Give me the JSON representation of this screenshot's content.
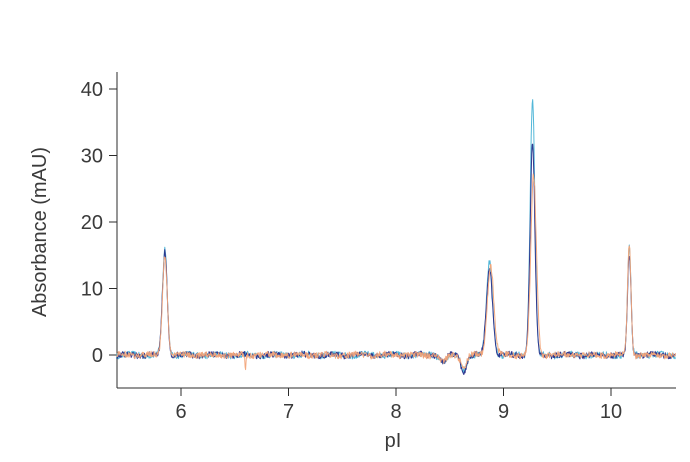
{
  "chart_data": {
    "type": "line",
    "title": "",
    "xlabel": "pI",
    "ylabel": "Absorbance (mAU)",
    "xlim": [
      5.4,
      10.6
    ],
    "ylim": [
      -5,
      43
    ],
    "x_ticks": [
      6,
      7,
      8,
      9,
      10
    ],
    "y_ticks": [
      0,
      10,
      20,
      30,
      40
    ],
    "grid": false,
    "legend": "none",
    "peaks_note_values": [
      {
        "x": 5.85,
        "y": 15.8
      },
      {
        "x": 6.6,
        "y": -2.0
      },
      {
        "x": 8.45,
        "y": -1.0
      },
      {
        "x": 8.63,
        "y": -2.5
      },
      {
        "x": 8.87,
        "y": 14.0
      },
      {
        "x": 9.27,
        "y": 38.5
      },
      {
        "x": 10.17,
        "y": 16.0
      }
    ],
    "series": [
      {
        "color": "#4ab3d6",
        "peaks": [
          {
            "x": 5.85,
            "h": 16.0,
            "w": 0.022
          },
          {
            "x": 8.44,
            "h": -1.0,
            "w": 0.03
          },
          {
            "x": 8.63,
            "h": -2.3,
            "w": 0.025
          },
          {
            "x": 8.87,
            "h": 14.0,
            "w": 0.028
          },
          {
            "x": 9.27,
            "h": 38.5,
            "w": 0.022
          },
          {
            "x": 10.17,
            "h": 16.0,
            "w": 0.016
          }
        ]
      },
      {
        "color": "#2a2f8a",
        "peaks": [
          {
            "x": 5.85,
            "h": 15.5,
            "w": 0.022
          },
          {
            "x": 8.44,
            "h": -1.0,
            "w": 0.03
          },
          {
            "x": 8.63,
            "h": -2.6,
            "w": 0.025
          },
          {
            "x": 8.87,
            "h": 13.0,
            "w": 0.028
          },
          {
            "x": 9.27,
            "h": 32.0,
            "w": 0.022
          },
          {
            "x": 10.17,
            "h": 15.0,
            "w": 0.016
          }
        ]
      },
      {
        "color": "#f2a57a",
        "peaks": [
          {
            "x": 5.85,
            "h": 15.0,
            "w": 0.022
          },
          {
            "x": 6.6,
            "h": -2.0,
            "w": 0.006
          },
          {
            "x": 8.44,
            "h": -1.0,
            "w": 0.03
          },
          {
            "x": 8.63,
            "h": -2.0,
            "w": 0.025
          },
          {
            "x": 8.88,
            "h": 13.5,
            "w": 0.03
          },
          {
            "x": 9.28,
            "h": 27.0,
            "w": 0.026
          },
          {
            "x": 10.17,
            "h": 16.5,
            "w": 0.016
          }
        ]
      }
    ]
  }
}
